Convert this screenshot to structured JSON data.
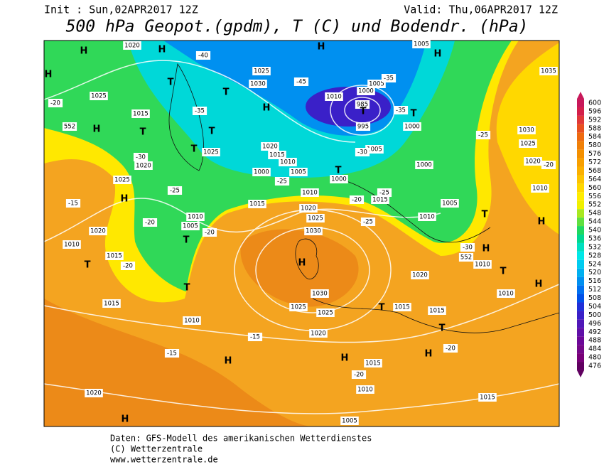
{
  "header": {
    "init": "Init : Sun,02APR2017 12Z",
    "valid": "Valid: Thu,06APR2017 12Z",
    "title": "500 hPa Geopot.(gpdm), T (C) und Bodendr. (hPa)"
  },
  "colorbar": {
    "labels": [
      600,
      596,
      592,
      588,
      584,
      580,
      576,
      572,
      568,
      564,
      560,
      556,
      552,
      548,
      544,
      540,
      536,
      532,
      528,
      524,
      520,
      516,
      512,
      508,
      504,
      500,
      496,
      492,
      488,
      484,
      480,
      476
    ],
    "colors": [
      "#c8185a",
      "#d4204a",
      "#e03838",
      "#e85020",
      "#ee6a10",
      "#f08008",
      "#f49000",
      "#f8a000",
      "#fbb000",
      "#fdc400",
      "#ffd800",
      "#ffec00",
      "#f0f000",
      "#a8e820",
      "#60e040",
      "#20d860",
      "#00d890",
      "#00e0c0",
      "#00e8e8",
      "#00ccf0",
      "#00b0f0",
      "#0090f0",
      "#0070f0",
      "#0050e8",
      "#2030d8",
      "#3a20c8",
      "#5018b8",
      "#6010a8",
      "#6c0898",
      "#740888",
      "#780078",
      "#600060"
    ]
  },
  "map_labels": [
    "H",
    "1020",
    "H",
    "-40",
    "1025",
    "H",
    "1005",
    "H",
    "1035",
    "1025",
    "T",
    "T",
    "1030",
    "H",
    "-45",
    "1010",
    "1000",
    "1005",
    "-35",
    "985",
    "T",
    "995",
    "-35",
    "T",
    "1000",
    "-20",
    "H",
    "552",
    "H",
    "1015",
    "T",
    "-35",
    "T",
    "T",
    "1025",
    "1020",
    "1015",
    "1010",
    "1005",
    "1000",
    "-25",
    "T",
    "1000",
    "1005",
    "-30",
    "-25",
    "1030",
    "1025",
    "1020",
    "-20",
    "1000",
    "1010",
    "1020",
    "-30",
    "1025",
    "-25",
    "-15",
    "H",
    "1010",
    "1015",
    "1020",
    "1025",
    "1030",
    "-20",
    "1015",
    "-25",
    "1010",
    "1005",
    "T",
    "H",
    "1010",
    "1005",
    "T",
    "-20",
    "-20",
    "1020",
    "1010",
    "T",
    "1015",
    "-20",
    "H",
    "-25",
    "-30",
    "552",
    "H",
    "1010",
    "T",
    "1020",
    "1010",
    "H",
    "T",
    "1015",
    "1010",
    "1030",
    "1025",
    "1025",
    "T",
    "1015",
    "1015",
    "T",
    "1020",
    "-15",
    "H",
    "-20",
    "-15",
    "H",
    "H",
    "1015",
    "-20",
    "1010",
    "1015",
    "1020",
    "H",
    "1005"
  ],
  "footer": [
    "Daten: GFS-Modell des amerikanischen Wetterdienstes",
    "(C) Wetterzentrale",
    "www.wetterzentrale.de"
  ]
}
